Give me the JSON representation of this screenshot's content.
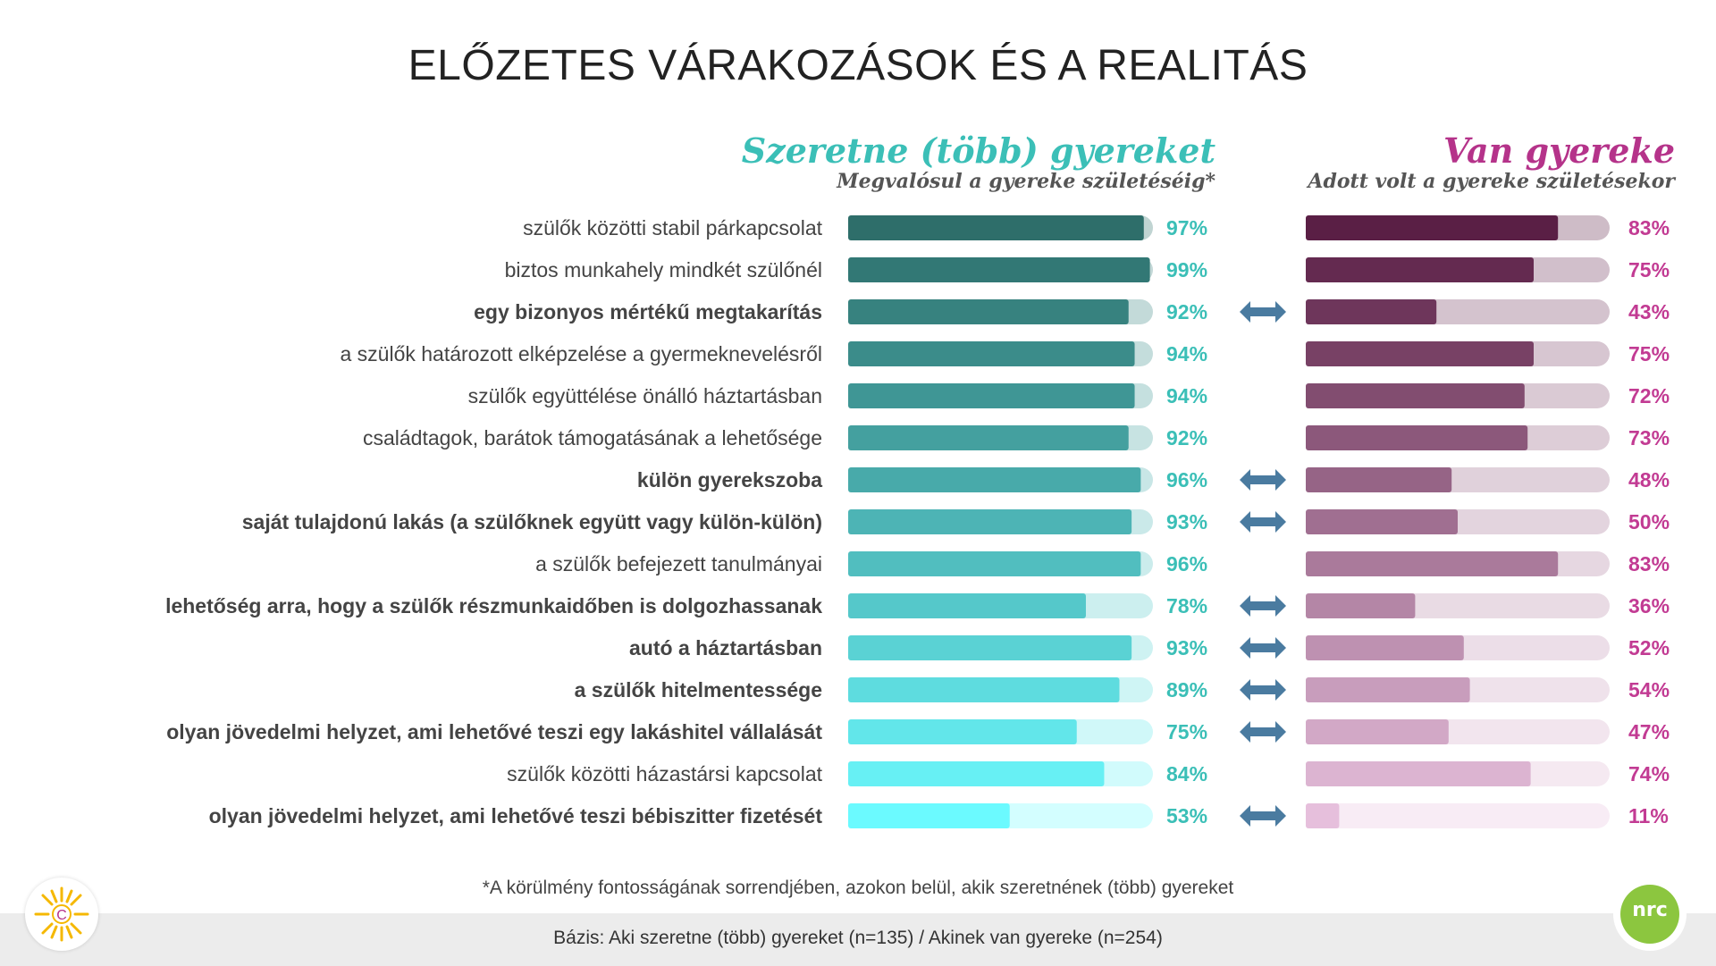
{
  "title": "ELŐZETES VÁRAKOZÁSOK ÉS A REALITÁS",
  "header_left": {
    "title": "Szeretne (több) gyereket",
    "subtitle": "Megvalósul a gyereke születéséig*"
  },
  "header_right": {
    "title": "Van gyereke",
    "subtitle": "Adott volt a gyereke születésekor"
  },
  "footnote": "*A körülmény fontosságának sorrendjében, azokon belül, akik szeretnének (több) gyereket",
  "base": "Bázis: Aki szeretne (több) gyereket (n=135) / Akinek van gyereke (n=254)",
  "logo_left_letter": "C",
  "logo_right_text": "nrc",
  "colors": {
    "teal_dark": "#2e6e6a",
    "teal_light": "#6bfaff",
    "magenta_dark": "#5a1f45",
    "magenta_light": "#e8c6e0",
    "arrow": "#4a7ba0"
  },
  "chart_data": [
    {
      "type": "bar",
      "orientation": "horizontal",
      "title": "Szeretne (több) gyereket",
      "subtitle": "Megvalósul a gyereke születéséig*",
      "xlim": [
        0,
        100
      ],
      "categories": [
        "szülők közötti stabil párkapcsolat",
        "biztos munkahely mindkét szülőnél",
        "egy bizonyos mértékű megtakarítás",
        "a szülők határozott elképzelése a gyermeknevelésről",
        "szülők együttélése önálló háztartásban",
        "családtagok, barátok támogatásának a lehetősége",
        "külön gyerekszoba",
        "saját tulajdonú lakás (a szülőknek együtt vagy külön-külön)",
        "a szülők befejezett tanulmányai",
        "lehetőség arra, hogy a szülők részmunkaidőben is dolgozhassanak",
        "autó a háztartásban",
        "a szülők hitelmentessége",
        "olyan jövedelmi helyzet, ami lehetővé teszi egy lakáshitel vállalását",
        "szülők közötti házastársi kapcsolat",
        "olyan jövedelmi helyzet, ami lehetővé teszi bébiszitter fizetését"
      ],
      "values": [
        97,
        99,
        92,
        94,
        94,
        92,
        96,
        93,
        96,
        78,
        93,
        89,
        75,
        84,
        53
      ],
      "labels": [
        "97%",
        "99%",
        "92%",
        "94%",
        "94%",
        "92%",
        "96%",
        "93%",
        "96%",
        "78%",
        "93%",
        "89%",
        "75%",
        "84%",
        "53%"
      ],
      "bold": [
        false,
        false,
        true,
        false,
        false,
        false,
        true,
        true,
        false,
        true,
        true,
        true,
        true,
        false,
        true
      ],
      "arrow": [
        false,
        false,
        true,
        false,
        false,
        false,
        true,
        true,
        false,
        true,
        true,
        true,
        true,
        false,
        true
      ]
    },
    {
      "type": "bar",
      "orientation": "horizontal",
      "title": "Van gyereke",
      "subtitle": "Adott volt a gyereke születésekor",
      "xlim": [
        0,
        100
      ],
      "values": [
        83,
        75,
        43,
        75,
        72,
        73,
        48,
        50,
        83,
        36,
        52,
        54,
        47,
        74,
        11
      ],
      "labels": [
        "83%",
        "75%",
        "43%",
        "75%",
        "72%",
        "73%",
        "48%",
        "50%",
        "83%",
        "36%",
        "52%",
        "54%",
        "47%",
        "74%",
        "11%"
      ]
    }
  ]
}
